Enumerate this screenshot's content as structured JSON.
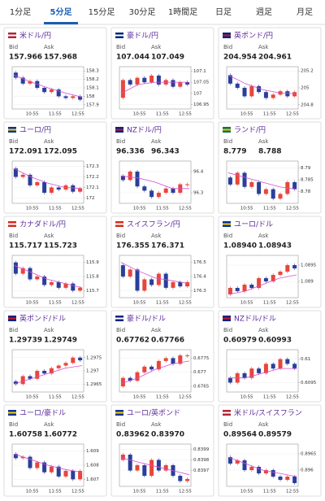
{
  "tabs": [
    "1分足",
    "5分足",
    "15分足",
    "30分足",
    "1時間足",
    "日足",
    "週足",
    "月足"
  ],
  "active_tab": 1,
  "up_color": "#e8463c",
  "down_color": "#2a3f9a",
  "ma_color": "#d44fd0",
  "name_color": "#5a2a9a",
  "charts": [
    {
      "name": "米ドル/円",
      "bid_label": "Bid",
      "ask_label": "Ask",
      "bid": "157.966",
      "ask": "157.968",
      "ylim": [
        157.85,
        158.35
      ],
      "yticks": [
        158.3,
        158.2,
        158.1,
        158,
        157.9
      ],
      "x_labels": [
        "10:55",
        "11:55",
        "12:55"
      ],
      "closes": [
        158.28,
        158.22,
        158.15,
        158.18,
        158.1,
        158.05,
        158.08,
        158.0,
        157.98,
        158.0,
        157.96
      ],
      "ma": [
        158.25,
        158.17,
        158.1,
        158.04,
        157.99
      ]
    },
    {
      "name": "豪ドル/円",
      "bid_label": "Bid",
      "ask_label": "Ask",
      "bid": "107.044",
      "ask": "107.049",
      "ylim": [
        106.93,
        107.12
      ],
      "yticks": [
        107.1,
        107.05,
        107,
        106.95
      ],
      "x_labels": [
        "10:55",
        "11:55",
        "12:55"
      ],
      "closes": [
        106.98,
        107.06,
        107.04,
        107.07,
        107.05,
        107.08,
        107.04,
        107.06,
        107.03,
        107.05,
        107.04
      ],
      "ma": [
        107.0,
        107.04,
        107.05,
        107.05,
        107.05
      ]
    },
    {
      "name": "英ポンド/円",
      "bid_label": "Bid",
      "ask_label": "Ask",
      "bid": "204.954",
      "ask": "204.961",
      "ylim": [
        204.75,
        205.25
      ],
      "yticks": [
        205.2,
        205,
        204.8
      ],
      "x_labels": [
        "10:55",
        "11:55",
        "12:55"
      ],
      "closes": [
        205.15,
        205.05,
        205.0,
        204.9,
        205.02,
        204.95,
        204.88,
        204.92,
        204.96,
        204.9,
        204.95
      ],
      "ma": [
        205.15,
        205.05,
        204.98,
        204.94,
        204.93
      ]
    },
    {
      "name": "ユーロ/円",
      "bid_label": "Bid",
      "ask_label": "Ask",
      "bid": "172.091",
      "ask": "172.095",
      "ylim": [
        171.95,
        172.35
      ],
      "yticks": [
        172.3,
        172.2,
        172.1,
        172
      ],
      "x_labels": [
        "10:55",
        "11:55",
        "12:55"
      ],
      "closes": [
        172.28,
        172.2,
        172.22,
        172.12,
        172.15,
        172.05,
        172.1,
        172.08,
        172.12,
        172.06,
        172.09
      ],
      "ma": [
        172.28,
        172.2,
        172.14,
        172.1,
        172.09
      ]
    },
    {
      "name": "NZドル/円",
      "bid_label": "Bid",
      "ask_label": "Ask",
      "bid": "96.336",
      "ask": "96.343",
      "ylim": [
        96.25,
        96.45
      ],
      "yticks": [
        96.4,
        96.3
      ],
      "x_labels": [
        "10:55",
        "11:55",
        "12:55"
      ],
      "closes": [
        96.38,
        96.36,
        96.4,
        96.33,
        96.31,
        96.28,
        96.3,
        96.32,
        96.3,
        96.34,
        96.34
      ],
      "ma": [
        96.38,
        96.37,
        96.35,
        96.32,
        96.32
      ]
    },
    {
      "name": "ランド/円",
      "bid_label": "Bid",
      "ask_label": "Ask",
      "bid": "8.779",
      "ask": "8.788",
      "ylim": [
        8.775,
        8.793
      ],
      "yticks": [
        8.79,
        8.785,
        8.78
      ],
      "x_labels": [
        "10:55",
        "11:55",
        "12:55"
      ],
      "closes": [
        8.786,
        8.783,
        8.788,
        8.782,
        8.784,
        8.779,
        8.781,
        8.777,
        8.779,
        8.784,
        8.781
      ],
      "ma": [
        8.788,
        8.786,
        8.784,
        8.782,
        8.781
      ]
    },
    {
      "name": "カナダドル/円",
      "bid_label": "Bid",
      "ask_label": "Ask",
      "bid": "115.717",
      "ask": "115.723",
      "ylim": [
        115.65,
        115.95
      ],
      "yticks": [
        115.9,
        115.8,
        115.7
      ],
      "x_labels": [
        "10:55",
        "11:55",
        "12:55"
      ],
      "closes": [
        115.9,
        115.82,
        115.86,
        115.78,
        115.8,
        115.74,
        115.76,
        115.72,
        115.75,
        115.7,
        115.72
      ],
      "ma": [
        115.88,
        115.83,
        115.78,
        115.75,
        115.72
      ]
    },
    {
      "name": "スイスフラン/円",
      "bid_label": "Bid",
      "ask_label": "Ask",
      "bid": "176.355",
      "ask": "176.371",
      "ylim": [
        176.25,
        176.55
      ],
      "yticks": [
        176.5,
        176.4,
        176.3
      ],
      "x_labels": [
        "10:55",
        "11:55",
        "12:55"
      ],
      "closes": [
        176.48,
        176.4,
        176.45,
        176.3,
        176.38,
        176.34,
        176.42,
        176.32,
        176.36,
        176.33,
        176.36
      ],
      "ma": [
        176.5,
        176.44,
        176.39,
        176.37,
        176.35
      ]
    },
    {
      "name": "ユーロ/ドル",
      "bid_label": "Bid",
      "ask_label": "Ask",
      "bid": "1.08940",
      "ask": "1.08943",
      "ylim": [
        1.0885,
        1.0898
      ],
      "yticks": [
        1.0895,
        1.089
      ],
      "x_labels": [
        "10:55",
        "11:55",
        "12:55"
      ],
      "closes": [
        1.0886,
        1.0888,
        1.0887,
        1.0889,
        1.0888,
        1.0891,
        1.089,
        1.0892,
        1.0893,
        1.0895,
        1.0894
      ],
      "ma": [
        1.0886,
        1.0887,
        1.0889,
        1.0891,
        1.0892
      ]
    },
    {
      "name": "英ポンド/ドル",
      "bid_label": "Bid",
      "ask_label": "Ask",
      "bid": "1.29739",
      "ask": "1.29749",
      "ylim": [
        1.2962,
        1.2978
      ],
      "yticks": [
        1.2975,
        1.297,
        1.2965
      ],
      "x_labels": [
        "10:55",
        "11:55",
        "12:55"
      ],
      "closes": [
        1.2966,
        1.2965,
        1.2968,
        1.2967,
        1.297,
        1.2969,
        1.2971,
        1.2972,
        1.2973,
        1.2975,
        1.2974
      ],
      "ma": [
        1.2965,
        1.2967,
        1.2969,
        1.2971,
        1.2972
      ]
    },
    {
      "name": "豪ドル/ドル",
      "bid_label": "Bid",
      "ask_label": "Ask",
      "bid": "0.67762",
      "ask": "0.67766",
      "ylim": [
        0.6763,
        0.6778
      ],
      "yticks": [
        0.6775,
        0.677,
        0.6765
      ],
      "x_labels": [
        "10:55",
        "11:55",
        "12:55"
      ],
      "closes": [
        0.6765,
        0.6768,
        0.6767,
        0.677,
        0.6772,
        0.6771,
        0.6774,
        0.6775,
        0.6773,
        0.6776,
        0.6776
      ],
      "ma": [
        0.6766,
        0.6768,
        0.6771,
        0.6773,
        0.6774
      ]
    },
    {
      "name": "NZドル/ドル",
      "bid_label": "Bid",
      "ask_label": "Ask",
      "bid": "0.60979",
      "ask": "0.60993",
      "ylim": [
        0.6093,
        0.6102
      ],
      "yticks": [
        0.61,
        0.6095
      ],
      "x_labels": [
        "10:55",
        "11:55",
        "12:55"
      ],
      "closes": [
        0.6096,
        0.6095,
        0.6097,
        0.6096,
        0.6098,
        0.6097,
        0.6099,
        0.6098,
        0.61,
        0.6099,
        0.6098
      ],
      "ma": [
        0.6096,
        0.6096,
        0.6097,
        0.6098,
        0.6098
      ]
    },
    {
      "name": "ユーロ/豪ドル",
      "bid_label": "Bid",
      "ask_label": "Ask",
      "bid": "1.60758",
      "ask": "1.60772",
      "ylim": [
        1.6065,
        1.6095
      ],
      "yticks": [
        1.609,
        1.608,
        1.607
      ],
      "x_labels": [
        "10:55",
        "11:55",
        "12:55"
      ],
      "closes": [
        1.6088,
        1.6085,
        1.6086,
        1.6078,
        1.6082,
        1.6075,
        1.6079,
        1.6072,
        1.6076,
        1.607,
        1.6076
      ],
      "ma": [
        1.6088,
        1.6084,
        1.608,
        1.6077,
        1.6075
      ]
    },
    {
      "name": "ユーロ/英ポンド",
      "bid_label": "Bid",
      "ask_label": "Ask",
      "bid": "0.83962",
      "ask": "0.83970",
      "ylim": [
        0.83955,
        0.83995
      ],
      "yticks": [
        0.8399,
        0.8398,
        0.8397
      ],
      "x_labels": [
        "10:55",
        "11:55",
        "12:55"
      ],
      "closes": [
        0.8398,
        0.83985,
        0.8397,
        0.83975,
        0.83965,
        0.8398,
        0.8397,
        0.83975,
        0.83965,
        0.8396,
        0.83962
      ],
      "ma": [
        0.83982,
        0.83978,
        0.83974,
        0.8397,
        0.83966
      ]
    },
    {
      "name": "米ドル/スイスフラン",
      "bid_label": "Bid",
      "ask_label": "Ask",
      "bid": "0.89564",
      "ask": "0.89579",
      "ylim": [
        0.8955,
        0.8968
      ],
      "yticks": [
        0.8965,
        0.896
      ],
      "x_labels": [
        "10:55",
        "11:55",
        "12:55"
      ],
      "closes": [
        0.8964,
        0.8962,
        0.8963,
        0.896,
        0.8961,
        0.8959,
        0.896,
        0.8958,
        0.8957,
        0.8958,
        0.8956
      ],
      "ma": [
        0.8964,
        0.8962,
        0.896,
        0.8959,
        0.8958
      ]
    }
  ]
}
